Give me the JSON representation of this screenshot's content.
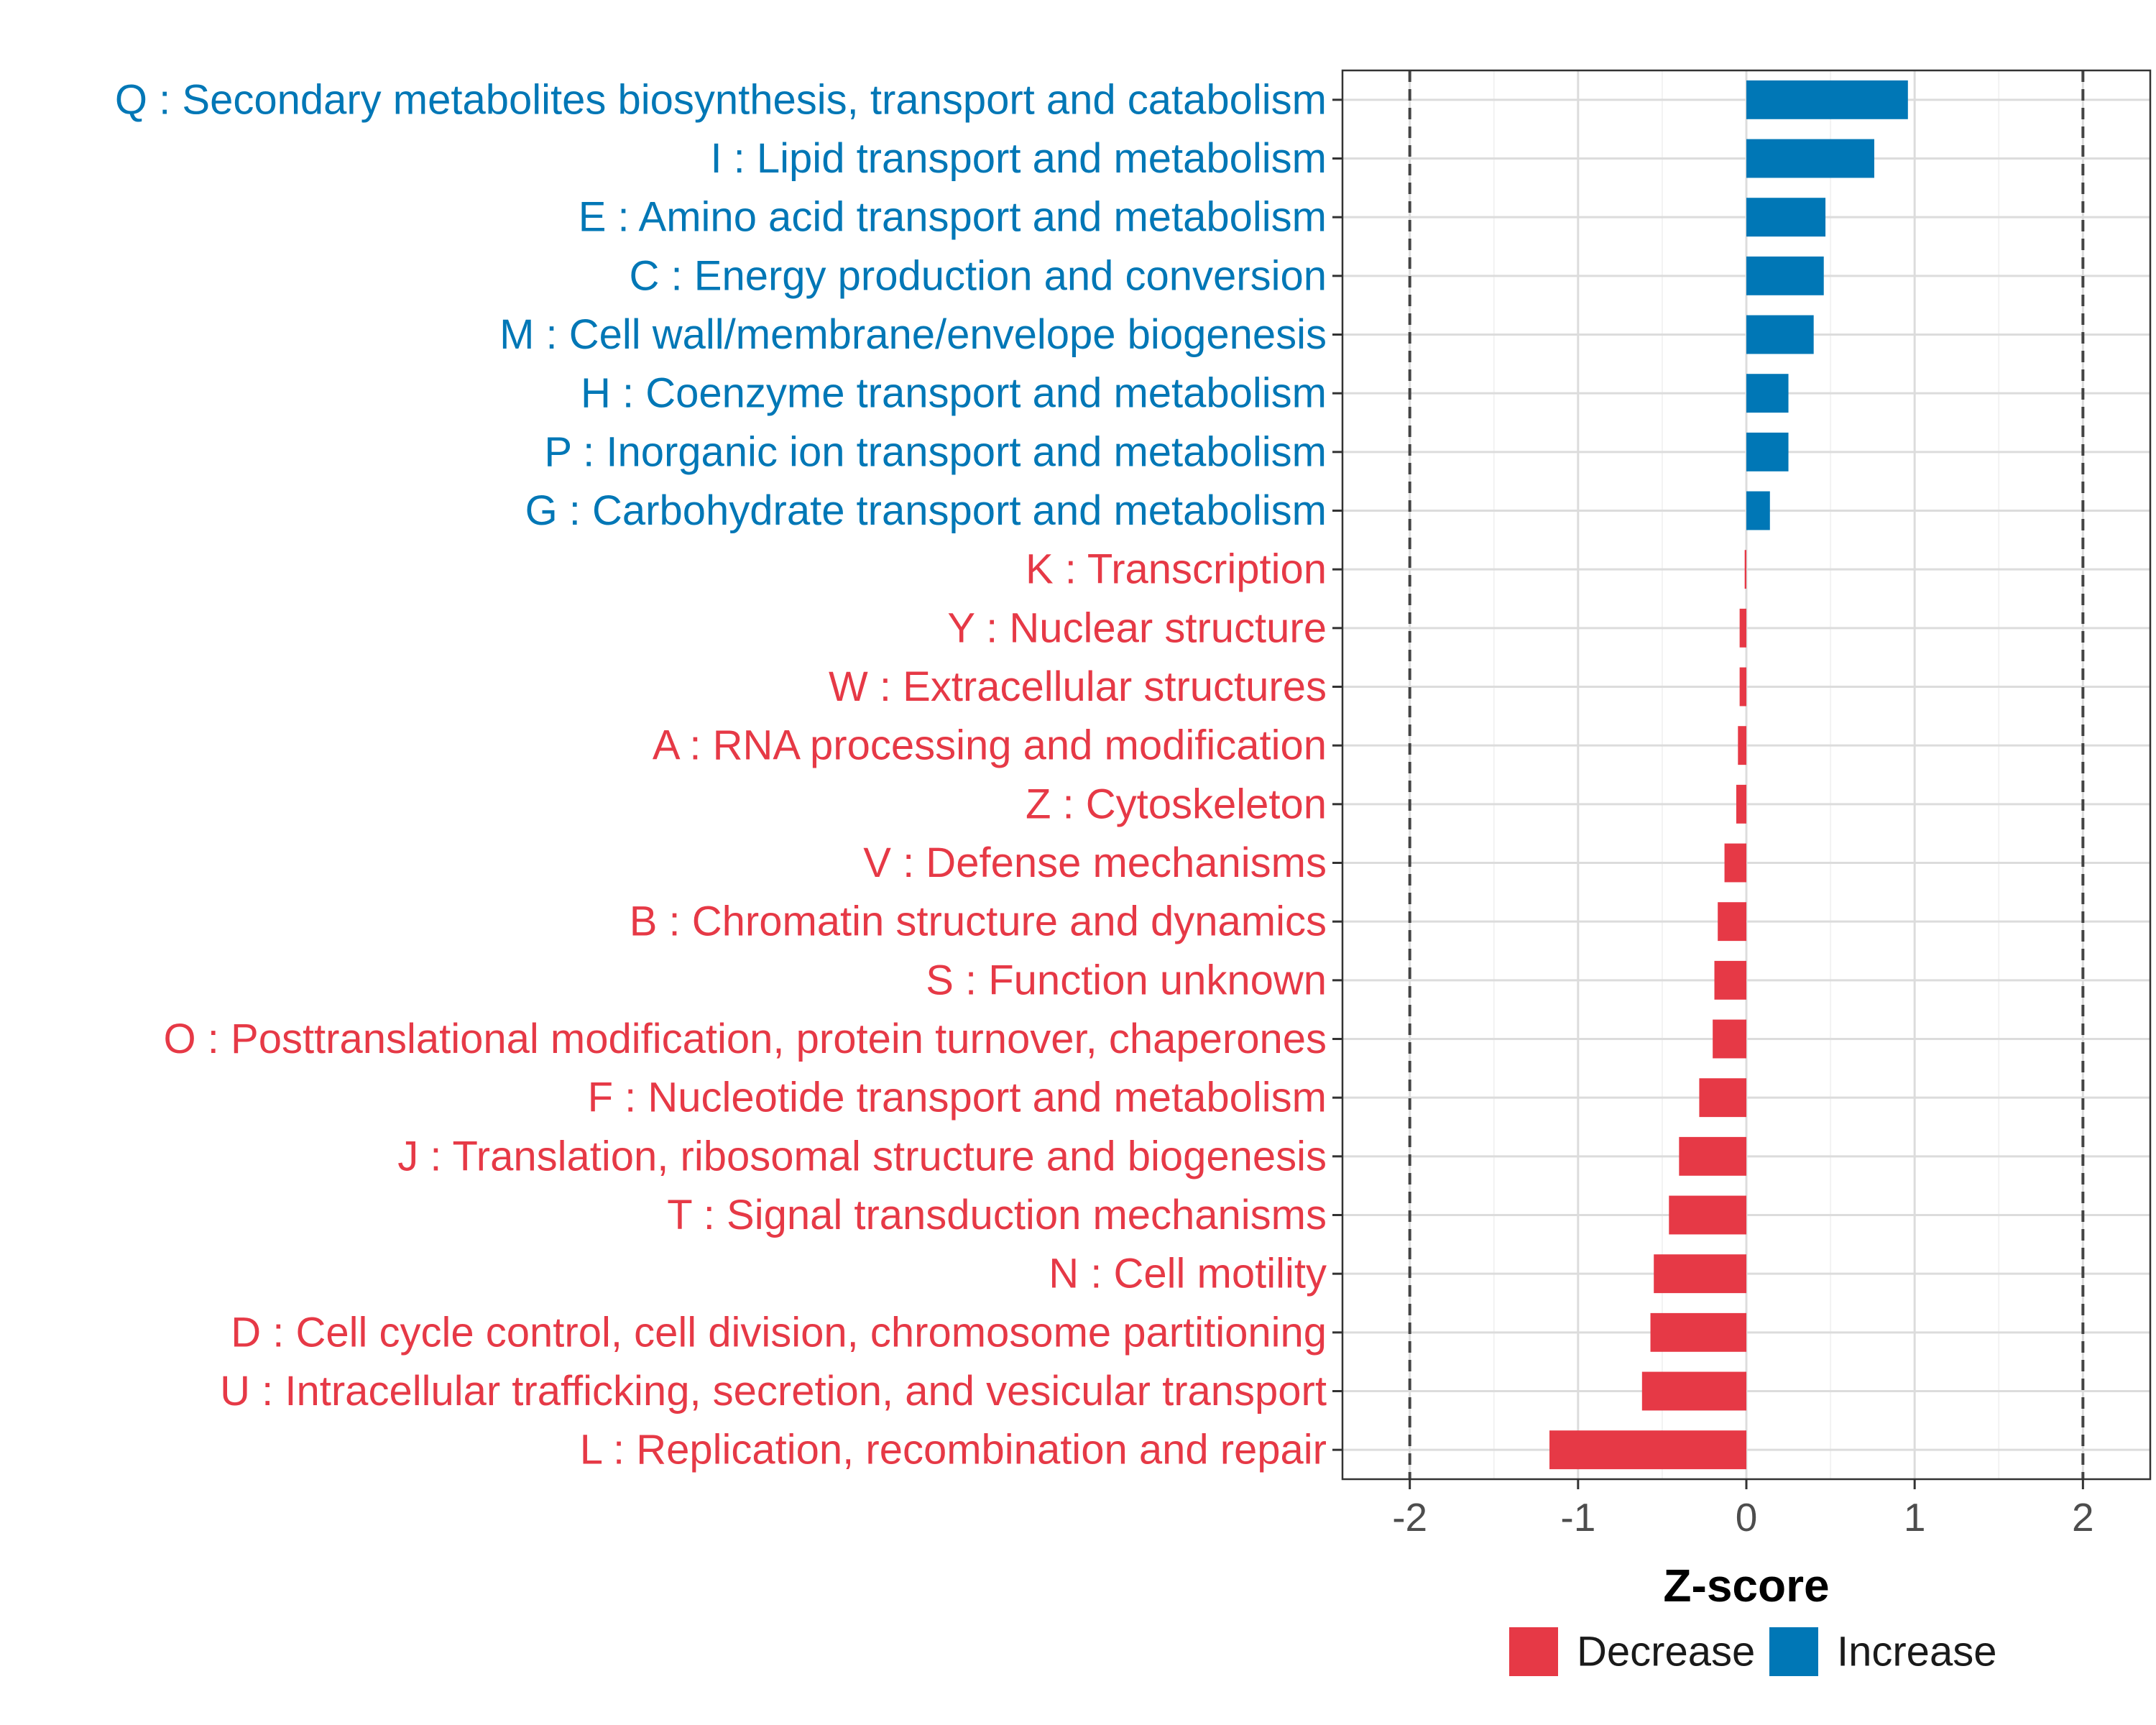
{
  "chart_data": {
    "type": "bar",
    "orientation": "horizontal",
    "title": "",
    "xlabel": "Z-score",
    "ylabel": "",
    "xlim": [
      -2.4,
      2.4
    ],
    "x_ticks": [
      -2,
      -1,
      0,
      1,
      2
    ],
    "x_tick_labels": [
      "-2",
      "-1",
      "0",
      "1",
      "2"
    ],
    "reference_lines": [
      -2,
      2
    ],
    "grid": true,
    "colors": {
      "Decrease": "#E63946",
      "Increase": "#0077B6"
    },
    "legend": {
      "position": "bottom",
      "entries": [
        "Decrease",
        "Increase"
      ]
    },
    "categories": [
      "Q : Secondary metabolites biosynthesis, transport and catabolism",
      "I : Lipid transport and metabolism",
      "E : Amino acid transport and metabolism",
      "C : Energy production and conversion",
      "M : Cell wall/membrane/envelope biogenesis",
      "H : Coenzyme transport and metabolism",
      "P : Inorganic ion transport and metabolism",
      "G : Carbohydrate transport and metabolism",
      "K : Transcription",
      "Y : Nuclear structure",
      "W : Extracellular structures",
      "A : RNA processing and modification",
      "Z : Cytoskeleton",
      "V : Defense mechanisms",
      "B : Chromatin structure and dynamics",
      "S : Function unknown",
      "O : Posttranslational modification, protein turnover, chaperones",
      "F : Nucleotide transport and metabolism",
      "J : Translation, ribosomal structure and biogenesis",
      "T : Signal transduction mechanisms",
      "N : Cell motility",
      "D : Cell cycle control, cell division, chromosome partitioning",
      "U : Intracellular trafficking, secretion, and vesicular transport",
      "L : Replication, recombination and repair"
    ],
    "values": [
      0.96,
      0.76,
      0.47,
      0.46,
      0.4,
      0.25,
      0.25,
      0.14,
      -0.01,
      -0.04,
      -0.04,
      -0.05,
      -0.06,
      -0.13,
      -0.17,
      -0.19,
      -0.2,
      -0.28,
      -0.4,
      -0.46,
      -0.55,
      -0.57,
      -0.62,
      -1.17
    ],
    "groups": [
      "Increase",
      "Increase",
      "Increase",
      "Increase",
      "Increase",
      "Increase",
      "Increase",
      "Increase",
      "Decrease",
      "Decrease",
      "Decrease",
      "Decrease",
      "Decrease",
      "Decrease",
      "Decrease",
      "Decrease",
      "Decrease",
      "Decrease",
      "Decrease",
      "Decrease",
      "Decrease",
      "Decrease",
      "Decrease",
      "Decrease"
    ]
  }
}
